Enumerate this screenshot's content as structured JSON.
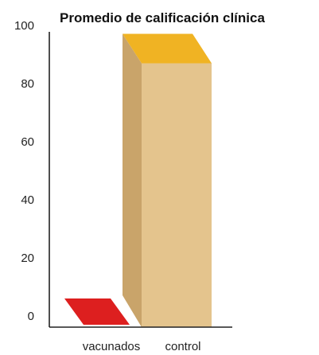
{
  "chart_data": {
    "type": "bar",
    "title": "Promedio de calificación clínica",
    "xlabel": "",
    "ylabel": "",
    "ylim": [
      0,
      100
    ],
    "yticks": [
      "0",
      "20",
      "40",
      "60",
      "80",
      "100"
    ],
    "categories": [
      "vacunados",
      "control"
    ],
    "values": [
      0,
      87
    ],
    "grid": false,
    "legend": "none",
    "bar_style": "3d",
    "colors": {
      "vacunados": {
        "top": "#dd1f1f",
        "front": "#c41818",
        "side": "#a51212"
      },
      "control": {
        "top": "#f0b323",
        "front": "#e4c48d",
        "side": "#c9a46a"
      },
      "axis": "#222222"
    }
  }
}
